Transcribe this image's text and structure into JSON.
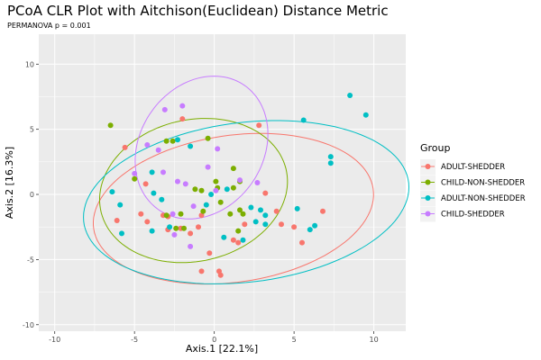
{
  "chart_data": {
    "type": "scatter",
    "title": "PCoA CLR Plot with Aitchison(Euclidean) Distance Metric",
    "subtitle": "PERMANOVA p = 0.001",
    "xlabel": "Axis.1   [22.1%]",
    "ylabel": "Axis.2   [16.3%]",
    "xlim": [
      -11,
      12
    ],
    "ylim": [
      -10.5,
      12.3
    ],
    "xticks": [
      -10,
      -5,
      0,
      5,
      10
    ],
    "yticks": [
      -10,
      -5,
      0,
      5,
      10
    ],
    "grid": true,
    "legend": {
      "title": "Group",
      "placement": "right"
    },
    "series": [
      {
        "name": "ADULT-SHEDDER",
        "color": "#F8766D",
        "points": [
          [
            -5.6,
            3.6
          ],
          [
            -4.3,
            0.8
          ],
          [
            -2.0,
            5.8
          ],
          [
            -3.2,
            -1.6
          ],
          [
            -2.9,
            -1.7
          ],
          [
            -4.2,
            -2.1
          ],
          [
            -1.5,
            -3.0
          ],
          [
            -0.8,
            -5.9
          ],
          [
            0.3,
            -5.9
          ],
          [
            0.4,
            -6.2
          ],
          [
            1.5,
            -3.7
          ],
          [
            1.9,
            -2.3
          ],
          [
            3.2,
            0.1
          ],
          [
            3.9,
            -1.3
          ],
          [
            4.2,
            -2.3
          ],
          [
            5.5,
            -3.7
          ],
          [
            6.8,
            -1.3
          ],
          [
            5.0,
            -2.5
          ],
          [
            1.2,
            -3.5
          ],
          [
            -0.8,
            -1.6
          ],
          [
            -0.3,
            -4.5
          ],
          [
            -2.1,
            -2.6
          ],
          [
            -6.1,
            -2.0
          ],
          [
            -4.6,
            -1.5
          ],
          [
            -2.9,
            -2.7
          ],
          [
            -1.0,
            -2.5
          ],
          [
            2.8,
            5.3
          ]
        ]
      },
      {
        "name": "CHILD-NON-SHEDDER",
        "color": "#7CAE00",
        "points": [
          [
            -6.5,
            5.3
          ],
          [
            -3.0,
            4.1
          ],
          [
            -0.4,
            4.3
          ],
          [
            -5.0,
            1.2
          ],
          [
            -2.6,
            4.1
          ],
          [
            -1.2,
            0.4
          ],
          [
            -3.0,
            -1.6
          ],
          [
            0.2,
            0.5
          ],
          [
            1.2,
            0.5
          ],
          [
            1.6,
            -1.2
          ],
          [
            1.8,
            -1.5
          ],
          [
            -2.1,
            -1.5
          ],
          [
            0.4,
            -0.6
          ],
          [
            -2.4,
            -2.6
          ],
          [
            -0.8,
            0.3
          ],
          [
            -1.9,
            -2.6
          ],
          [
            1.0,
            -1.5
          ],
          [
            1.6,
            1.0
          ],
          [
            1.5,
            -2.8
          ],
          [
            0.1,
            1.0
          ],
          [
            -0.7,
            -1.3
          ],
          [
            1.2,
            2.0
          ]
        ]
      },
      {
        "name": "ADULT-NON-SHEDDER",
        "color": "#00BFC4",
        "points": [
          [
            -6.4,
            0.2
          ],
          [
            -5.9,
            -0.8
          ],
          [
            -5.8,
            -3.0
          ],
          [
            -3.9,
            1.7
          ],
          [
            -3.8,
            0.1
          ],
          [
            -3.9,
            -2.8
          ],
          [
            -2.3,
            4.2
          ],
          [
            -1.5,
            3.7
          ],
          [
            -3.3,
            -0.4
          ],
          [
            -2.8,
            -2.5
          ],
          [
            -0.5,
            -0.8
          ],
          [
            -0.2,
            0.0
          ],
          [
            0.8,
            0.4
          ],
          [
            0.6,
            -3.3
          ],
          [
            1.8,
            -3.5
          ],
          [
            2.6,
            -2.1
          ],
          [
            3.2,
            -1.6
          ],
          [
            5.6,
            5.7
          ],
          [
            7.3,
            2.9
          ],
          [
            7.3,
            2.4
          ],
          [
            8.5,
            7.6
          ],
          [
            9.5,
            6.1
          ],
          [
            5.2,
            -1.1
          ],
          [
            6.0,
            -2.7
          ],
          [
            6.3,
            -2.4
          ],
          [
            2.3,
            -1.0
          ],
          [
            3.2,
            -2.3
          ],
          [
            2.9,
            -1.2
          ]
        ]
      },
      {
        "name": "CHILD-SHEDDER",
        "color": "#C77CFF",
        "points": [
          [
            -3.1,
            6.5
          ],
          [
            -2.0,
            6.8
          ],
          [
            -4.2,
            3.8
          ],
          [
            -3.5,
            3.4
          ],
          [
            -2.6,
            -1.5
          ],
          [
            -0.4,
            2.1
          ],
          [
            0.2,
            3.5
          ],
          [
            -5.0,
            1.6
          ],
          [
            -3.2,
            1.7
          ],
          [
            -2.3,
            1.0
          ],
          [
            -1.3,
            -0.9
          ],
          [
            -2.5,
            -3.1
          ],
          [
            0.1,
            0.3
          ],
          [
            1.6,
            1.1
          ],
          [
            -1.5,
            -4.0
          ],
          [
            -1.8,
            0.8
          ],
          [
            2.7,
            0.9
          ]
        ]
      }
    ],
    "ellipses": [
      {
        "series": "ADULT-SHEDDER",
        "center": [
          1.2,
          -1.1
        ],
        "rx": 8.9,
        "ry": 5.6,
        "angle": 12
      },
      {
        "series": "CHILD-NON-SHEDDER",
        "center": [
          -1.3,
          0.3
        ],
        "rx": 6.1,
        "ry": 5.3,
        "angle": 32
      },
      {
        "series": "ADULT-NON-SHEDDER",
        "center": [
          2.0,
          -0.6
        ],
        "rx": 10.3,
        "ry": 6.1,
        "angle": 10
      },
      {
        "series": "CHILD-SHEDDER",
        "center": [
          -0.8,
          3.6
        ],
        "rx": 5.6,
        "ry": 4.0,
        "angle": 73
      }
    ]
  }
}
